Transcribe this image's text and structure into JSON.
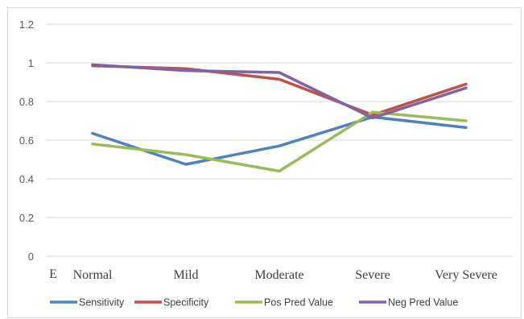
{
  "chart_data": {
    "type": "line",
    "title": "",
    "xlabel": "",
    "ylabel": "",
    "corner_label": "E",
    "categories": [
      "Normal",
      "Mild",
      "Moderate",
      "Severe",
      "Very Severe"
    ],
    "ylim": [
      0,
      1.2
    ],
    "yticks": [
      "0",
      "0.2",
      "0.4",
      "0.6",
      "0.8",
      "1",
      "1.2"
    ],
    "ytick_values": [
      0,
      0.2,
      0.4,
      0.6,
      0.8,
      1.0,
      1.2
    ],
    "grid": true,
    "legend_position": "bottom",
    "series": [
      {
        "name": "Sensitivity",
        "color": "#4f81bd",
        "values": [
          0.635,
          0.475,
          0.57,
          0.72,
          0.665
        ]
      },
      {
        "name": "Specificity",
        "color": "#c0504d",
        "values": [
          0.985,
          0.97,
          0.915,
          0.73,
          0.89
        ]
      },
      {
        "name": "Pos Pred Value",
        "color": "#9bbb59",
        "values": [
          0.58,
          0.525,
          0.44,
          0.745,
          0.7
        ]
      },
      {
        "name": "Neg Pred Value",
        "color": "#8064a2",
        "values": [
          0.99,
          0.96,
          0.95,
          0.715,
          0.87
        ]
      }
    ]
  }
}
